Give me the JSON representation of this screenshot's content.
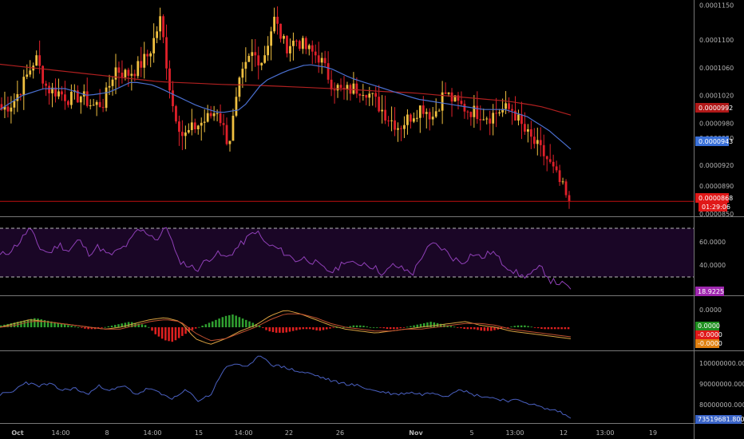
{
  "chart_data": {
    "type": "candlestick",
    "x_axis": {
      "tick_labels": [
        "Oct",
        "14:00",
        "8",
        "14:00",
        "15",
        "14:00",
        "22",
        "26",
        "Nov",
        "5",
        "13:00",
        "12",
        "13:00",
        "19"
      ]
    },
    "price_panel": {
      "y_ticks": [
        "0.0001150",
        "0.0001100",
        "0.0001060",
        "0.0001020",
        "0.0000980",
        "0.0000920",
        "0.0000890",
        "0.0000850"
      ],
      "ylim": [
        8.5e-05,
        0.0001155
      ],
      "long_ma_label": "0.0000992",
      "short_ma_label": "0.0000943",
      "hidden_tick_label": "0.0000950",
      "last_price_label": "0.0000868",
      "countdown_label": "01:29:06",
      "colors": {
        "up": "#f0c040",
        "down": "#e0202a",
        "long_ma": "#b02020",
        "short_ma": "#4a6fd0",
        "last_price": "#e01010"
      },
      "close_path": [
        0.0001,
        0.000101,
        0.000104,
        0.0001075,
        0.000103,
        0.0001025,
        0.0001015,
        0.000102,
        0.0001005,
        0.000101,
        0.000106,
        0.000105,
        0.000106,
        0.000108,
        0.000113,
        0.000101,
        9.6e-05,
        9.75e-05,
        9.85e-05,
        0.0001,
        9.5e-05,
        0.000104,
        0.000108,
        0.000107,
        0.000113,
        0.000109,
        0.00011,
        0.0001085,
        0.0001075,
        0.000104,
        0.0001025,
        0.000103,
        0.000103,
        0.000101,
        9.9e-05,
        9.75e-05,
        9.9e-05,
        0.0001005,
        9.9e-05,
        0.0001025,
        0.000101,
        0.0001,
        9.95e-05,
        9.9e-05,
        0.0001,
        0.0001,
        9.7e-05,
        9.5e-05,
        9.3e-05,
        9e-05,
        8.68e-05
      ],
      "long_ma_path": [
        0.0001065,
        0.000106,
        0.0001055,
        0.000105,
        0.0001045,
        0.000104,
        0.0001038,
        0.0001036,
        0.0001035,
        0.0001033,
        0.0001031,
        0.0001029,
        0.0001026,
        0.0001024,
        0.000102,
        0.0001016,
        0.0001012,
        0.0001005,
        9.92e-05
      ],
      "short_ma_path": [
        0.0001,
        0.000102,
        0.000103,
        0.000103,
        0.000102,
        0.0001025,
        0.000104,
        0.0001035,
        0.000102,
        0.0001005,
        9.95e-05,
        0.0001,
        0.000104,
        0.0001055,
        0.0001065,
        0.000106,
        0.0001045,
        0.0001035,
        0.0001025,
        0.0001015,
        0.000101,
        0.0001005,
        0.0001,
        0.0001,
        9.9e-05,
        9.7e-05,
        9.43e-05
      ]
    },
    "rsi_panel": {
      "y_ticks": [
        "60.0000",
        "40.0000"
      ],
      "bands": [
        70,
        30
      ],
      "ylim": [
        15,
        80
      ],
      "current_label": "18.9225",
      "current_value": 18.9225,
      "colors": {
        "line": "#9040b8",
        "band_fill": "#1a0626"
      },
      "values": [
        48,
        52,
        60,
        72,
        55,
        50,
        58,
        52,
        62,
        50,
        56,
        48,
        52,
        58,
        70,
        68,
        62,
        74,
        45,
        40,
        36,
        44,
        50,
        46,
        54,
        62,
        70,
        58,
        55,
        50,
        44,
        46,
        42,
        36,
        34,
        44,
        40,
        42,
        38,
        32,
        40,
        36,
        33,
        50,
        58,
        54,
        46,
        42,
        50,
        46,
        52,
        42,
        36,
        30,
        32,
        38,
        26,
        24,
        19
      ]
    },
    "macd_panel": {
      "y_tick": "0.0000",
      "labels": [
        "0.0000",
        "-0.0000",
        "-0.0000"
      ],
      "colors": {
        "pos": "#30a030",
        "neg": "#e02020",
        "macd": "#d8a040",
        "signal": "#c05030",
        "line3": "#909030"
      },
      "histogram": [
        1,
        2,
        3,
        4,
        5,
        4,
        3,
        2,
        1,
        0,
        -1,
        -1,
        0,
        1,
        2,
        3,
        2,
        1,
        -4,
        -7,
        -8,
        -5,
        -2,
        0,
        2,
        4,
        6,
        7,
        5,
        3,
        1,
        -2,
        -3,
        -3,
        -2,
        -1,
        -1,
        -2,
        -1,
        0,
        0,
        1,
        1,
        0,
        0,
        -1,
        -1,
        0,
        1,
        2,
        3,
        2,
        1,
        0,
        -1,
        -1,
        -2,
        -2,
        -1,
        0,
        1,
        1,
        0,
        -1,
        -1,
        -1,
        -1
      ],
      "macd_line": [
        0,
        2,
        4,
        3,
        2,
        1,
        0,
        -1,
        0,
        2,
        4,
        5,
        3,
        -6,
        -9,
        -6,
        -2,
        1,
        6,
        9,
        7,
        4,
        1,
        -1,
        -2,
        -3,
        -2,
        -1,
        0,
        1,
        2,
        3,
        1,
        0,
        -2,
        -3,
        -4,
        -5,
        -6
      ],
      "signal_line": [
        0,
        1,
        3,
        3,
        2,
        1,
        0,
        -1,
        -1,
        1,
        3,
        4,
        3,
        -3,
        -7,
        -6,
        -3,
        0,
        4,
        7,
        7,
        5,
        2,
        0,
        -1,
        -2,
        -2,
        -1,
        -1,
        0,
        1,
        2,
        2,
        1,
        -1,
        -2,
        -3,
        -4,
        -5
      ]
    },
    "volume_panel": {
      "y_ticks": [
        "100000000.0000",
        "90000000.0000",
        "80000000.0000"
      ],
      "ylim": [
        72000000,
        105000000
      ],
      "current_label": "73519681.8000",
      "current_value": 73519681.8,
      "colors": {
        "line": "#4a60c0"
      },
      "values": [
        85000000,
        86000000,
        91000000,
        89000000,
        90000000,
        87000000,
        88000000,
        85000000,
        89000000,
        87000000,
        89000000,
        85000000,
        88000000,
        85000000,
        83000000,
        87000000,
        82000000,
        85000000,
        97000000,
        100000000,
        98000000,
        104000000,
        99000000,
        98000000,
        96000000,
        95000000,
        93000000,
        91000000,
        90000000,
        89000000,
        87000000,
        86000000,
        85000000,
        86000000,
        85000000,
        86000000,
        84000000,
        88000000,
        85000000,
        84000000,
        83000000,
        82000000,
        82000000,
        80000000,
        78000000,
        77000000,
        73500000
      ]
    }
  }
}
